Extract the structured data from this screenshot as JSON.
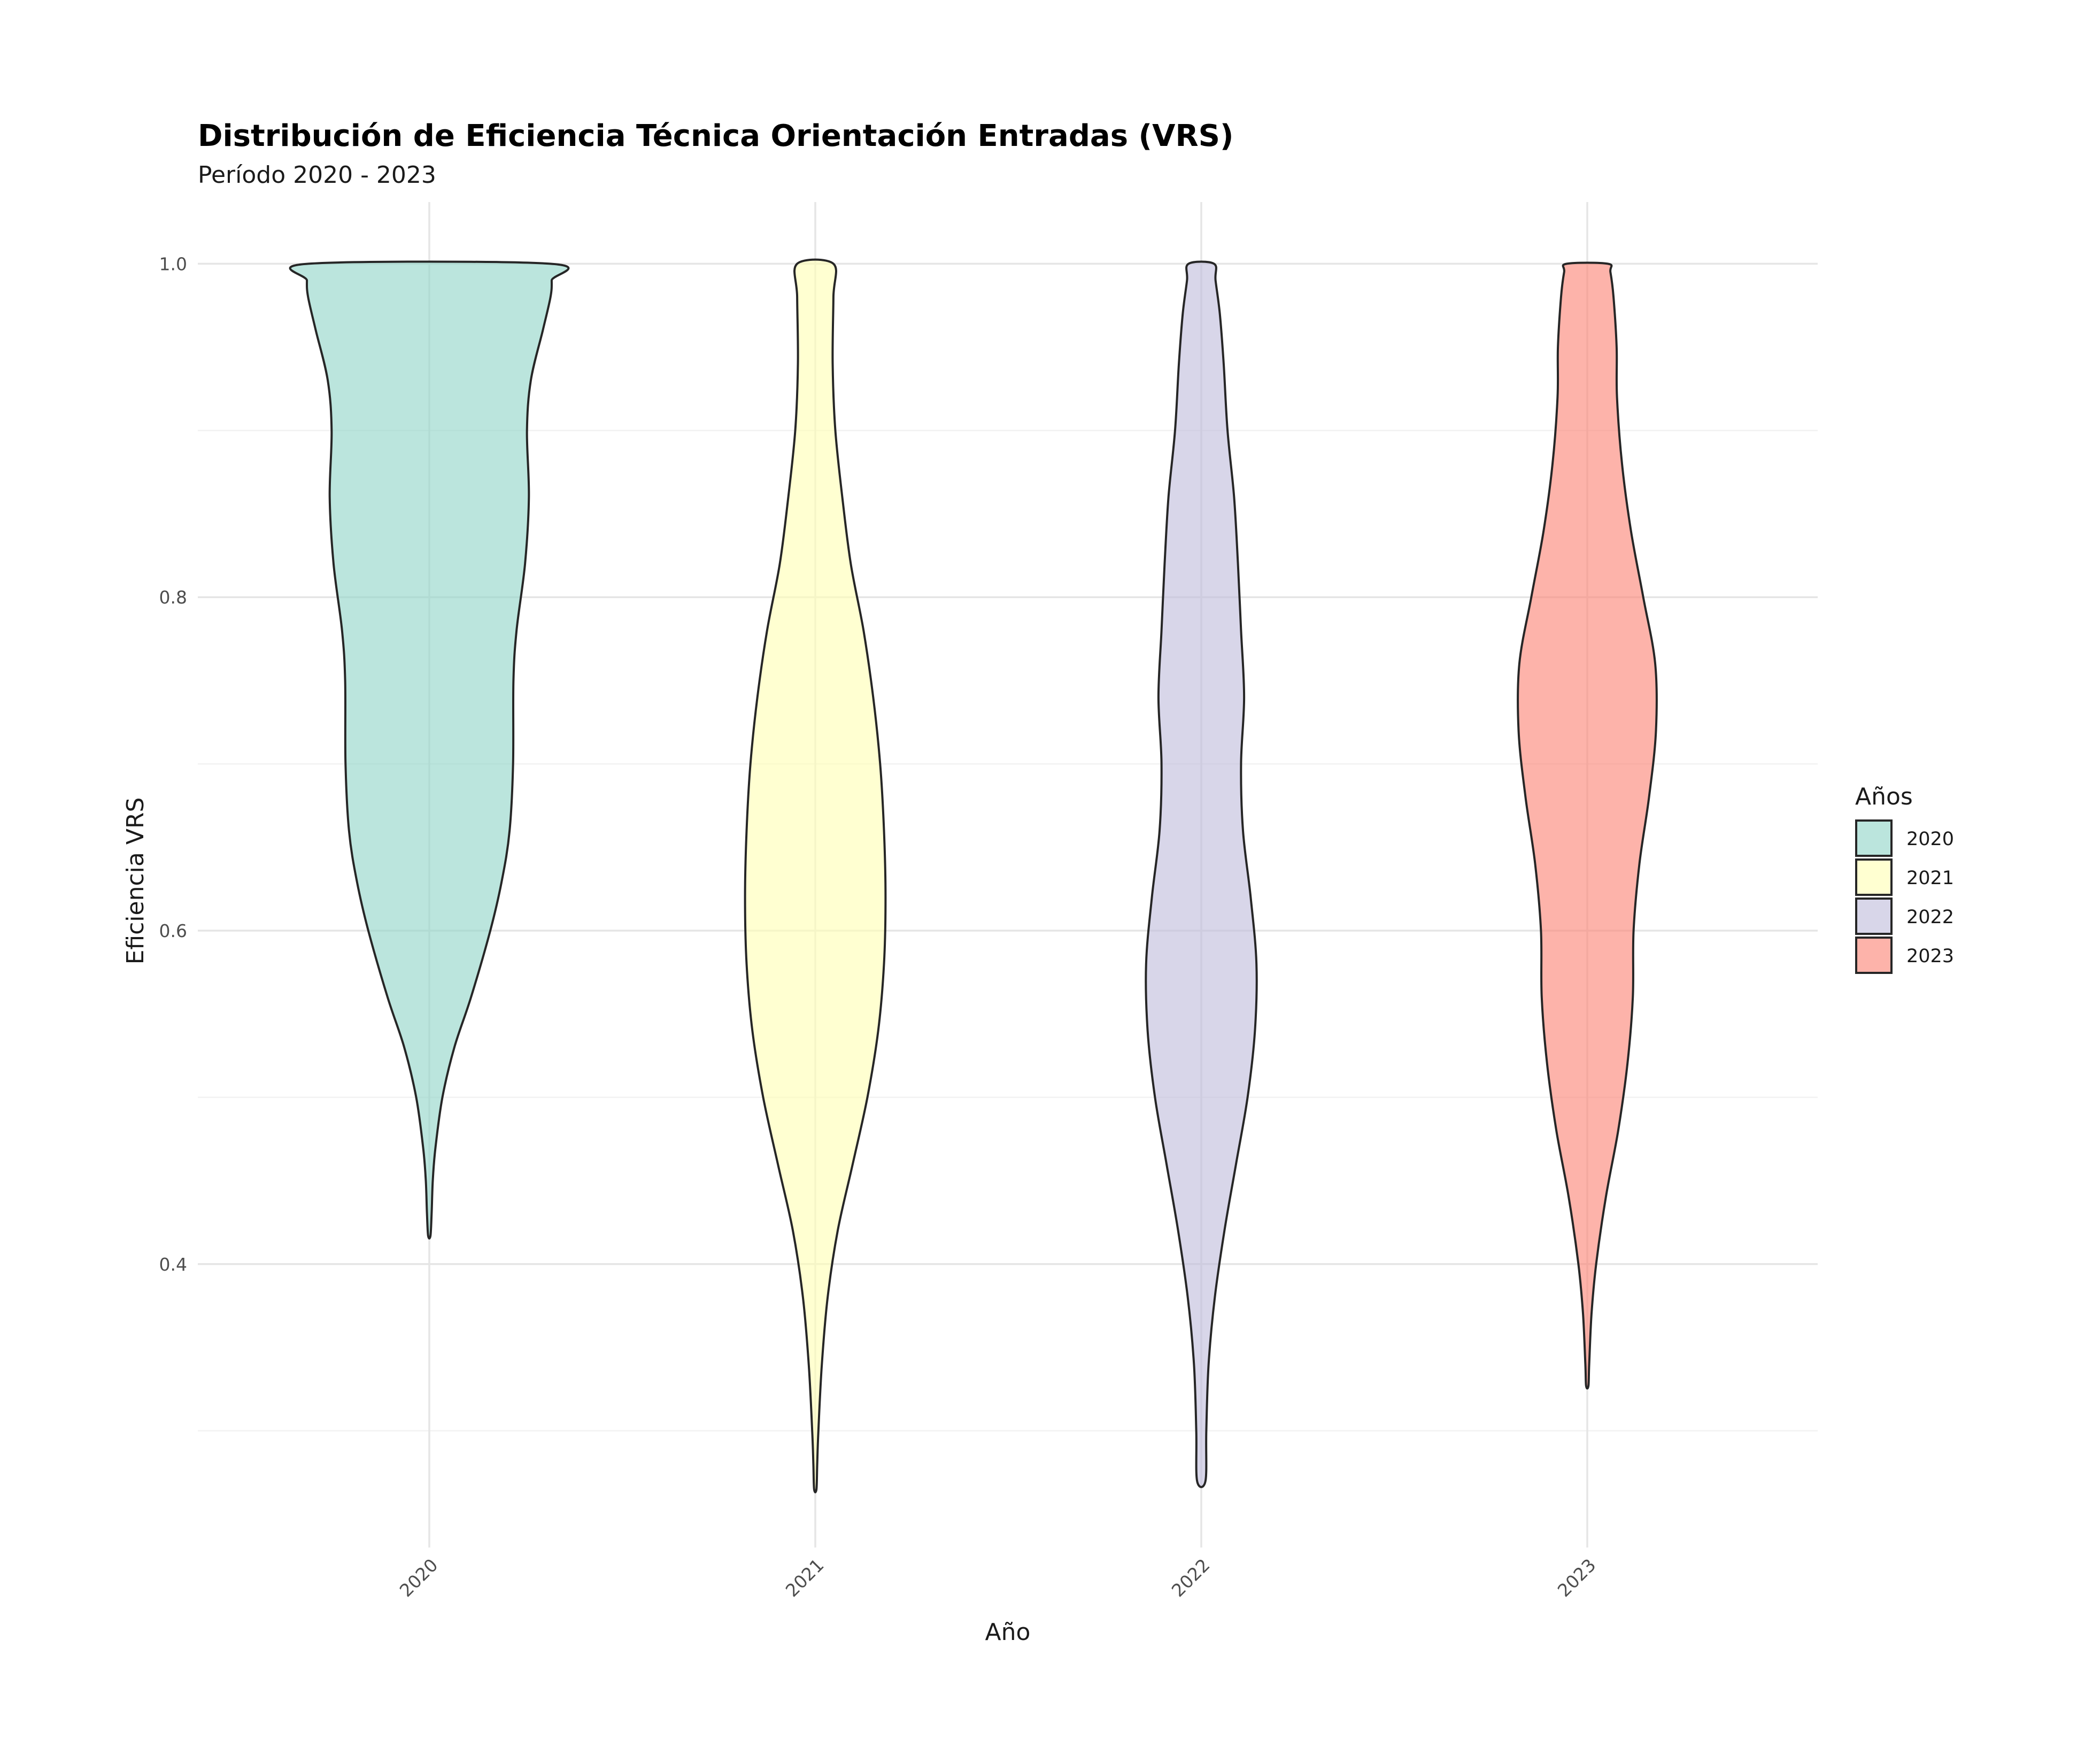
{
  "title": "Distribución de Eficiencia Técnica Orientación Entradas (VRS)",
  "subtitle": "Período 2020 - 2023",
  "chart_data": {
    "type": "violin",
    "title": "Distribución de Eficiencia Técnica Orientación Entradas (VRS)",
    "subtitle": "Período 2020 - 2023",
    "xlabel": "Año",
    "ylabel": "Eficiencia VRS",
    "categories": [
      "2020",
      "2021",
      "2022",
      "2023"
    ],
    "y_ticks": [
      "0.4",
      "0.6",
      "0.8",
      "1.0"
    ],
    "y_tick_values": [
      0.4,
      0.6,
      0.8,
      1.0
    ],
    "ylim": [
      0.23,
      1.037
    ],
    "grid": true,
    "legend": {
      "title": "Años",
      "position": "right",
      "entries": [
        "2020",
        "2021",
        "2022",
        "2023"
      ]
    },
    "colors": [
      "#8dd3c7",
      "#ffffb3",
      "#bebada",
      "#fb8072"
    ],
    "fill_opacity": 0.6,
    "outline_color": "#262626",
    "series": [
      {
        "category": "2020",
        "min": 0.417,
        "max": 1.0,
        "profile": [
          [
            0.417,
            0.003
          ],
          [
            0.43,
            0.006
          ],
          [
            0.45,
            0.009
          ],
          [
            0.47,
            0.016
          ],
          [
            0.5,
            0.034
          ],
          [
            0.53,
            0.065
          ],
          [
            0.56,
            0.108
          ],
          [
            0.6,
            0.158
          ],
          [
            0.63,
            0.188
          ],
          [
            0.66,
            0.208
          ],
          [
            0.7,
            0.217
          ],
          [
            0.75,
            0.218
          ],
          [
            0.78,
            0.226
          ],
          [
            0.82,
            0.248
          ],
          [
            0.86,
            0.258
          ],
          [
            0.9,
            0.253
          ],
          [
            0.93,
            0.263
          ],
          [
            0.96,
            0.294
          ],
          [
            0.98,
            0.314
          ],
          [
            0.99,
            0.317
          ],
          [
            1.0,
            0.313
          ]
        ]
      },
      {
        "category": "2021",
        "min": 0.265,
        "max": 1.0,
        "profile": [
          [
            0.265,
            0.003
          ],
          [
            0.28,
            0.005
          ],
          [
            0.3,
            0.008
          ],
          [
            0.34,
            0.017
          ],
          [
            0.38,
            0.032
          ],
          [
            0.42,
            0.058
          ],
          [
            0.46,
            0.097
          ],
          [
            0.5,
            0.135
          ],
          [
            0.54,
            0.163
          ],
          [
            0.58,
            0.178
          ],
          [
            0.62,
            0.182
          ],
          [
            0.66,
            0.178
          ],
          [
            0.7,
            0.168
          ],
          [
            0.74,
            0.15
          ],
          [
            0.78,
            0.125
          ],
          [
            0.82,
            0.092
          ],
          [
            0.86,
            0.07
          ],
          [
            0.9,
            0.052
          ],
          [
            0.94,
            0.045
          ],
          [
            0.98,
            0.047
          ],
          [
            1.0,
            0.047
          ]
        ]
      },
      {
        "category": "2022",
        "min": 0.27,
        "max": 1.0,
        "profile": [
          [
            0.27,
            0.011
          ],
          [
            0.3,
            0.013
          ],
          [
            0.34,
            0.019
          ],
          [
            0.38,
            0.035
          ],
          [
            0.42,
            0.06
          ],
          [
            0.46,
            0.09
          ],
          [
            0.5,
            0.12
          ],
          [
            0.54,
            0.139
          ],
          [
            0.58,
            0.143
          ],
          [
            0.62,
            0.128
          ],
          [
            0.66,
            0.108
          ],
          [
            0.7,
            0.103
          ],
          [
            0.74,
            0.111
          ],
          [
            0.78,
            0.103
          ],
          [
            0.82,
            0.095
          ],
          [
            0.86,
            0.085
          ],
          [
            0.9,
            0.068
          ],
          [
            0.94,
            0.058
          ],
          [
            0.97,
            0.048
          ],
          [
            0.99,
            0.037
          ],
          [
            1.0,
            0.033
          ]
        ]
      },
      {
        "category": "2023",
        "min": 0.327,
        "max": 1.0,
        "profile": [
          [
            0.327,
            0.003
          ],
          [
            0.34,
            0.005
          ],
          [
            0.37,
            0.011
          ],
          [
            0.4,
            0.023
          ],
          [
            0.44,
            0.048
          ],
          [
            0.48,
            0.08
          ],
          [
            0.52,
            0.104
          ],
          [
            0.56,
            0.118
          ],
          [
            0.6,
            0.12
          ],
          [
            0.64,
            0.135
          ],
          [
            0.68,
            0.16
          ],
          [
            0.72,
            0.178
          ],
          [
            0.76,
            0.176
          ],
          [
            0.8,
            0.145
          ],
          [
            0.84,
            0.113
          ],
          [
            0.88,
            0.09
          ],
          [
            0.92,
            0.077
          ],
          [
            0.95,
            0.076
          ],
          [
            0.98,
            0.068
          ],
          [
            0.995,
            0.06
          ],
          [
            1.0,
            0.053
          ]
        ]
      }
    ]
  }
}
